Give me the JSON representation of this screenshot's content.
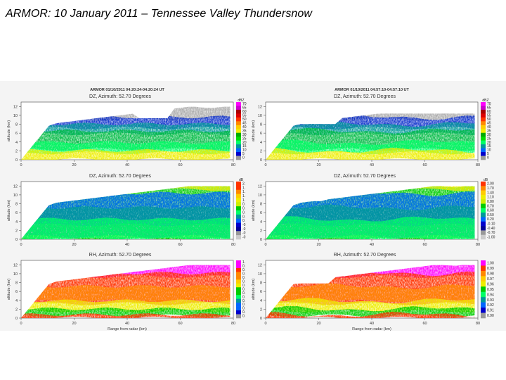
{
  "slide": {
    "title": "ARMOR:  10 January 2011 – Tennessee Valley Thundersnow"
  },
  "chart_data": {
    "type": "heatmap",
    "description_source": "RHI radar scans, 2 columns x 3 rows",
    "columns": [
      {
        "header": "ARMOR 01/10/2011 04:20:24-04:20:24 UT"
      },
      {
        "header": "ARMOR 01/10/2011 04:57:10-04:57:10 UT"
      }
    ],
    "rows": [
      {
        "title": "DZ, Azimuth: 52.70 Degrees",
        "units": "dBZ",
        "left_scale": [
          "70",
          "65",
          "60",
          "55",
          "50",
          "45",
          "40",
          "35",
          "30",
          "25",
          "20",
          "15",
          "10",
          "5",
          "0"
        ],
        "right_scale": [
          "70",
          "65",
          "60",
          "55",
          "50",
          "45",
          "40",
          "35",
          "30",
          "25",
          "20",
          "15",
          "10",
          "5",
          "0"
        ]
      },
      {
        "title": "DZ, Azimuth: 52.70 Degrees",
        "units": "dB",
        "left_scale": [
          "2.",
          "1.",
          "1.",
          "1.",
          "1.",
          "0.",
          "0.",
          "0.",
          "0.",
          "0.",
          "-0",
          "-0",
          "-0",
          "-0"
        ],
        "right_scale": [
          "2.00",
          "1.70",
          "1.40",
          "1.10",
          "0.80",
          "0.70",
          "0.60",
          "0.50",
          "0.20",
          "-0.10",
          "-0.40",
          "-0.70",
          "-1.00"
        ]
      },
      {
        "title": "RH, Azimuth: 52.70 Degrees",
        "units": "",
        "left_scale": [
          "1.",
          "0.",
          "0.",
          "0.",
          "0.",
          "0.",
          "0.",
          "0.",
          "0.",
          "0.",
          "0.",
          "0.",
          "0.",
          "0.",
          "0."
        ],
        "right_scale": [
          "1.00",
          "0.99",
          "0.98",
          "0.97",
          "0.96",
          "0.95",
          "0.94",
          "0.93",
          "0.92",
          "0.91",
          "0.90"
        ]
      }
    ],
    "x_axis": {
      "label": "Range from radar (km)",
      "ticks": [
        "0",
        "20",
        "40",
        "60",
        "80"
      ],
      "range": [
        0,
        80
      ]
    },
    "y_axis": {
      "label": "altitude (km)",
      "ticks": [
        "0",
        "2",
        "4",
        "6",
        "8",
        "10",
        "12"
      ],
      "range": [
        0,
        13
      ]
    },
    "colors": {
      "dz": [
        "#ff00ff",
        "#cc00cc",
        "#aa0000",
        "#dd0000",
        "#ff3300",
        "#ff8800",
        "#ffcc00",
        "#eeee00",
        "#00aa00",
        "#00dd00",
        "#00ff66",
        "#009999",
        "#0066ff",
        "#0000cc",
        "#999999"
      ],
      "zdr": [
        "#ff3300",
        "#ff8800",
        "#ffcc00",
        "#eeee00",
        "#ccee00",
        "#00cc00",
        "#00ff66",
        "#009999",
        "#0066ff",
        "#0000cc",
        "#000099",
        "#999999",
        "#cccccc"
      ],
      "rh": [
        "#ff00ff",
        "#ff3300",
        "#ff8800",
        "#ffcc00",
        "#eeee00",
        "#00cc00",
        "#00ff66",
        "#009999",
        "#0066ff",
        "#0000cc",
        "#999999"
      ]
    }
  }
}
